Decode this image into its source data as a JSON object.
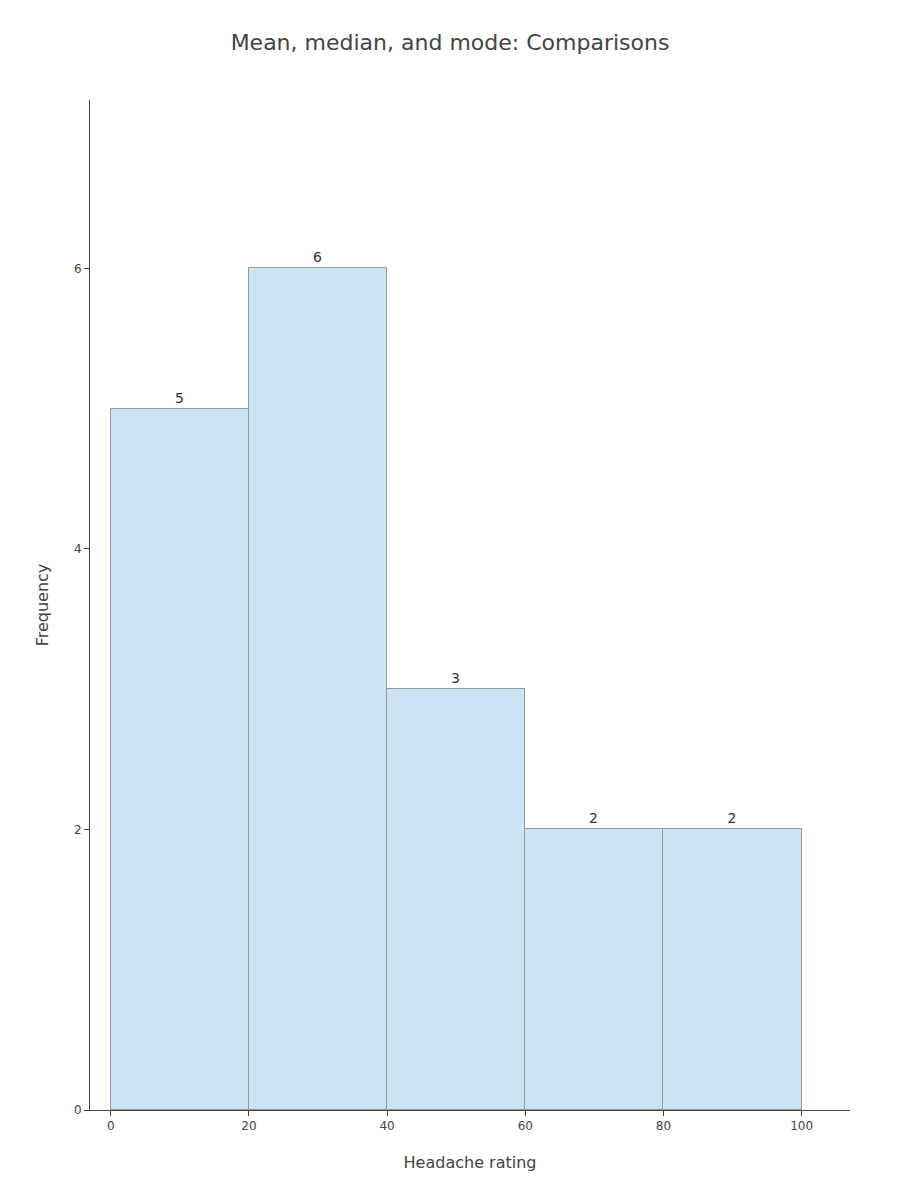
{
  "chart_data": {
    "type": "histogram",
    "title": "Mean, median, and mode: Comparisons",
    "bins": [
      0,
      20,
      40,
      60,
      80,
      100
    ],
    "values": [
      5,
      6,
      3,
      2,
      2
    ],
    "color": "#cde4f5",
    "xlabel": "Headache rating",
    "ylabel": "Frequency",
    "xlim": [
      -3,
      107
    ],
    "ylim": [
      0,
      7.2
    ],
    "xticks": [
      0,
      20,
      40,
      60,
      80,
      100
    ],
    "yticks": [
      0,
      2,
      4,
      6
    ],
    "grid": false,
    "data_labels": true
  }
}
